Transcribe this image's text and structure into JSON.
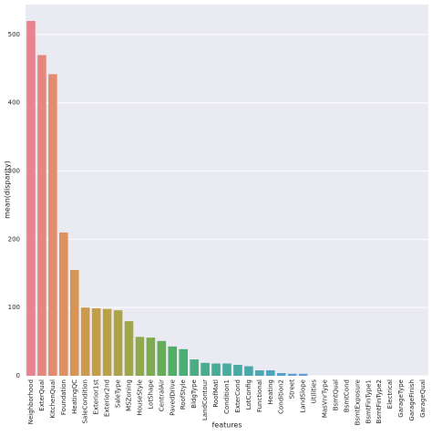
{
  "chart_data": {
    "type": "bar",
    "x_label": "features",
    "y_label": "mean(disparity)",
    "categories": [
      "Neighborhood",
      "ExterQual",
      "KitchenQual",
      "Foundation",
      "HeatingQC",
      "SaleCondition",
      "Exterior1st",
      "Exterior2nd",
      "SaleType",
      "MSZoning",
      "HouseStyle",
      "LotShape",
      "CentralAir",
      "PavedDrive",
      "RoofStyle",
      "BldgType",
      "LandContour",
      "RoofMatl",
      "Condition1",
      "ExterCond",
      "LotConfig",
      "Functional",
      "Heating",
      "Condition2",
      "Street",
      "LandSlope",
      "Utilities",
      "MasVnrType",
      "BsmtQual",
      "BsmtCond",
      "BsmtExposure",
      "BsmtFinType1",
      "BsmtFinType2",
      "Electrical",
      "GarageType",
      "GarageFinish",
      "GarageQual"
    ],
    "values": [
      520,
      470,
      442,
      210,
      155,
      100,
      99,
      98,
      96,
      80,
      57,
      56,
      51,
      43,
      39,
      24,
      19,
      18,
      18,
      16,
      14,
      8,
      8,
      4,
      3,
      3,
      0,
      0,
      0,
      0,
      0,
      0,
      0,
      0,
      0,
      0,
      0
    ],
    "colors": [
      "#e8838f",
      "#e6877b",
      "#e38b6c",
      "#de905e",
      "#d69552",
      "#cd9a4b",
      "#c39e48",
      "#b8a147",
      "#aca447",
      "#9fa748",
      "#90a94b",
      "#7dac4f",
      "#65ae58",
      "#4faf64",
      "#4aae74",
      "#4aad81",
      "#49ac8c",
      "#49ab95",
      "#4aaa9d",
      "#4aa9a5",
      "#4aa8ac",
      "#4ba7b4",
      "#4da5bc",
      "#52a3c6",
      "#5a9fd0",
      "#689bda",
      "#7a96e0",
      "#8c92e2",
      "#9d8ee2",
      "#ad8ae0",
      "#bc86dc",
      "#c983d6",
      "#d581cd",
      "#de80c2",
      "#e381b5",
      "#e683a8",
      "#e8859b"
    ],
    "ylim": [
      0,
      544
    ],
    "yticks": [
      0,
      100,
      200,
      300,
      400,
      500
    ],
    "grid": true,
    "background": "#eaeaf2"
  }
}
